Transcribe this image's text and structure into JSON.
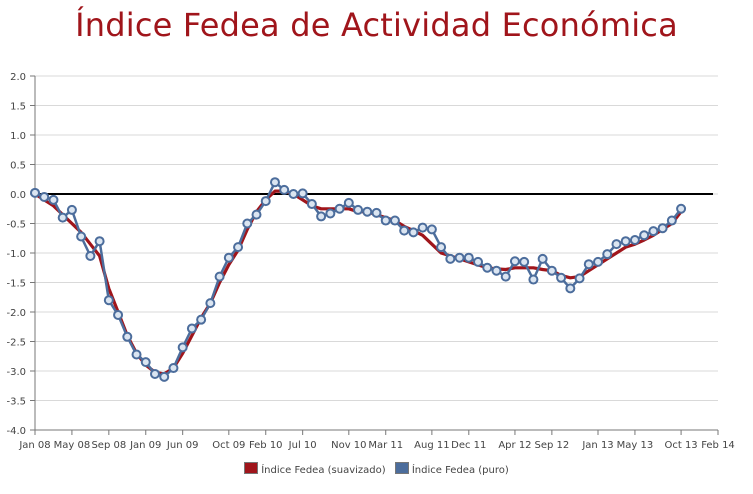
{
  "chart_data": {
    "type": "line",
    "title": "Índice Fedea de Actividad Económica",
    "xlabel": "",
    "ylabel": "",
    "ylim": [
      -4.0,
      2.0
    ],
    "yticks": [
      2.0,
      1.5,
      1.0,
      0.5,
      0.0,
      -0.5,
      -1.0,
      -1.5,
      -2.0,
      -2.5,
      -3.0,
      -3.5,
      -4.0
    ],
    "ytick_labels": [
      "2.0",
      "1.5",
      "1.0",
      "0.5",
      "0.0",
      "-0.5",
      "-1.0",
      "-1.5",
      "-2.0",
      "-2.5",
      "-3.0",
      "-3.5",
      "-4.0"
    ],
    "xlim": [
      0,
      73
    ],
    "xticks": [
      0,
      4,
      8,
      12,
      16,
      21,
      25,
      29,
      34,
      38,
      43,
      47,
      52,
      56,
      61,
      65,
      70,
      74
    ],
    "xtick_labels": [
      "Jan 08",
      "May 08",
      "Sep 08",
      "Jan 09",
      "Jun 09",
      "Oct 09",
      "Feb 10",
      "Jul 10",
      "Nov 10",
      "Mar 11",
      "Aug 11",
      "Dec 11",
      "Apr 12",
      "Sep 12",
      "Jan 13",
      "May 13",
      "Oct 13",
      "Feb 14"
    ],
    "x": [
      0,
      1,
      2,
      3,
      4,
      5,
      6,
      7,
      8,
      9,
      10,
      11,
      12,
      13,
      14,
      15,
      16,
      17,
      18,
      19,
      20,
      21,
      22,
      23,
      24,
      25,
      26,
      27,
      28,
      29,
      30,
      31,
      32,
      33,
      34,
      35,
      36,
      37,
      38,
      39,
      40,
      41,
      42,
      43,
      44,
      45,
      46,
      47,
      48,
      49,
      50,
      51,
      52,
      53,
      54,
      55,
      56,
      57,
      58,
      59,
      60,
      61,
      62,
      63,
      64,
      65,
      66,
      67,
      68,
      69,
      70
    ],
    "series": [
      {
        "name": "Índice Fedea (suavizado)",
        "color": "#a0151b",
        "values": [
          0.0,
          -0.1,
          -0.2,
          -0.35,
          -0.5,
          -0.65,
          -0.85,
          -1.05,
          -1.6,
          -2.0,
          -2.4,
          -2.7,
          -2.9,
          -3.02,
          -3.05,
          -2.95,
          -2.7,
          -2.4,
          -2.1,
          -1.85,
          -1.5,
          -1.2,
          -0.95,
          -0.6,
          -0.3,
          -0.1,
          0.05,
          0.05,
          0.0,
          -0.1,
          -0.2,
          -0.25,
          -0.25,
          -0.25,
          -0.25,
          -0.3,
          -0.3,
          -0.35,
          -0.4,
          -0.45,
          -0.55,
          -0.62,
          -0.7,
          -0.85,
          -1.0,
          -1.05,
          -1.1,
          -1.15,
          -1.2,
          -1.25,
          -1.27,
          -1.28,
          -1.25,
          -1.25,
          -1.25,
          -1.28,
          -1.3,
          -1.38,
          -1.42,
          -1.4,
          -1.3,
          -1.2,
          -1.1,
          -1.0,
          -0.9,
          -0.85,
          -0.78,
          -0.7,
          -0.6,
          -0.5,
          -0.3
        ]
      },
      {
        "name": "Índice Fedea (puro)",
        "color": "#4c6d9c",
        "values": [
          0.02,
          -0.05,
          -0.1,
          -0.4,
          -0.27,
          -0.72,
          -1.05,
          -0.8,
          -1.8,
          -2.05,
          -2.42,
          -2.72,
          -2.85,
          -3.05,
          -3.1,
          -2.95,
          -2.6,
          -2.28,
          -2.13,
          -1.85,
          -1.4,
          -1.08,
          -0.9,
          -0.5,
          -0.35,
          -0.12,
          0.2,
          0.07,
          0.0,
          0.01,
          -0.17,
          -0.38,
          -0.33,
          -0.25,
          -0.15,
          -0.27,
          -0.3,
          -0.32,
          -0.45,
          -0.45,
          -0.62,
          -0.65,
          -0.57,
          -0.6,
          -0.9,
          -1.1,
          -1.08,
          -1.08,
          -1.15,
          -1.25,
          -1.3,
          -1.4,
          -1.14,
          -1.15,
          -1.45,
          -1.1,
          -1.3,
          -1.42,
          -1.6,
          -1.43,
          -1.19,
          -1.15,
          -1.02,
          -0.85,
          -0.8,
          -0.78,
          -0.7,
          -0.63,
          -0.58,
          -0.45,
          -0.25
        ]
      }
    ],
    "legend_position": "bottom-center",
    "grid": true
  },
  "legend": {
    "smoothed_label": "Índice Fedea (suavizado)",
    "raw_label": "Índice Fedea (puro)"
  }
}
